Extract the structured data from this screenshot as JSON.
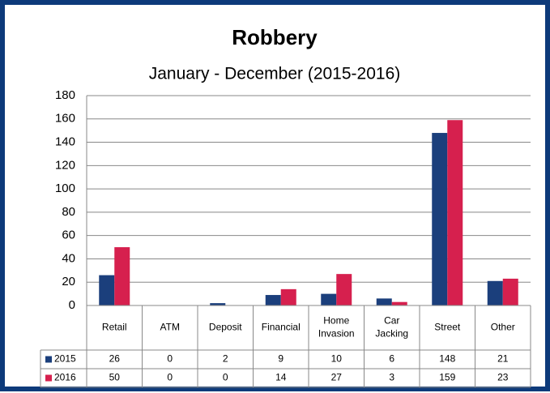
{
  "chart_data": {
    "type": "bar",
    "title": "Robbery",
    "subtitle": "January - December (2015-2016)",
    "categories": [
      "Retail",
      "ATM",
      "Deposit",
      "Financial",
      "Home Invasion",
      "Car Jacking",
      "Street",
      "Other"
    ],
    "series": [
      {
        "name": "2015",
        "color": "#1b3f7c",
        "values": [
          26,
          0,
          2,
          9,
          10,
          6,
          148,
          21
        ]
      },
      {
        "name": "2016",
        "color": "#d6204e",
        "values": [
          50,
          0,
          0,
          14,
          27,
          3,
          159,
          23
        ]
      }
    ],
    "ylim": [
      0,
      180
    ],
    "yticks": [
      0,
      20,
      40,
      60,
      80,
      100,
      120,
      140,
      160,
      180
    ],
    "grid": true,
    "data_table": true
  }
}
